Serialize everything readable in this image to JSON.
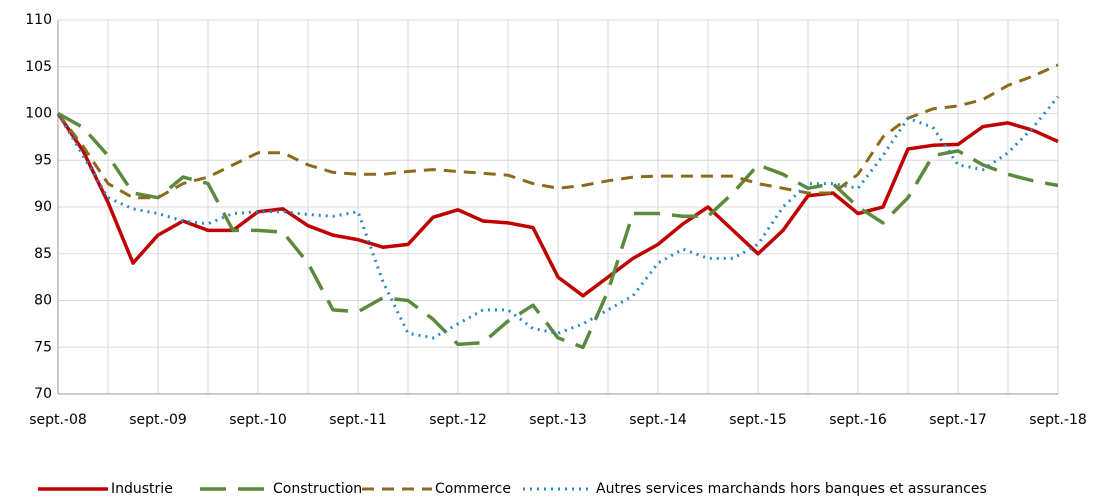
{
  "chart_data": {
    "type": "line",
    "categories": [
      "sept.-08",
      null,
      null,
      null,
      "sept.-09",
      null,
      null,
      null,
      "sept.-10",
      null,
      null,
      null,
      "sept.-11",
      null,
      null,
      null,
      "sept.-12",
      null,
      null,
      null,
      "sept.-13",
      null,
      null,
      null,
      "sept.-14",
      null,
      null,
      null,
      "sept.-15",
      null,
      null,
      null,
      "sept.-16",
      null,
      null,
      null,
      "sept.-17",
      null,
      null,
      null,
      "sept.-18"
    ],
    "series": [
      {
        "name": "Industrie",
        "color": "#c00000",
        "dash": "solid",
        "values": [
          100,
          96,
          90.5,
          84,
          87,
          88.5,
          87.5,
          87.5,
          89.5,
          89.8,
          88,
          87,
          86.5,
          85.7,
          86,
          88.9,
          89.7,
          88.5,
          88.3,
          87.8,
          82.5,
          80.5,
          82.5,
          84.5,
          86,
          88.2,
          90,
          87.5,
          85,
          87.5,
          91.2,
          91.5,
          89.3,
          90,
          96.2,
          96.6,
          96.7,
          98.6,
          99,
          98.2,
          97
        ]
      },
      {
        "name": "Construction",
        "color": "#5b8a3c",
        "dash": "long-dash",
        "values": [
          100,
          98.5,
          95.5,
          91.5,
          91,
          93.2,
          92.5,
          87.5,
          87.5,
          87.3,
          84,
          79,
          78.8,
          80.3,
          80,
          78,
          75.3,
          75.5,
          77.8,
          79.5,
          76,
          75,
          81,
          89.3,
          89.3,
          89,
          89,
          91.5,
          94.5,
          93.5,
          92,
          92.5,
          90,
          88.3,
          91,
          95.5,
          96,
          94.5,
          93.5,
          92.8,
          92.3
        ]
      },
      {
        "name": "Commerce",
        "color": "#8c6a1c",
        "dash": "dash",
        "values": [
          100,
          96.5,
          92.5,
          91,
          91,
          92.5,
          93.2,
          94.5,
          95.8,
          95.8,
          94.5,
          93.7,
          93.5,
          93.5,
          93.8,
          94,
          93.8,
          93.6,
          93.4,
          92.5,
          92,
          92.3,
          92.8,
          93.2,
          93.3,
          93.3,
          93.3,
          93.3,
          92.5,
          92,
          91.5,
          91.5,
          93.5,
          97.5,
          99.5,
          100.5,
          100.8,
          101.5,
          103,
          104,
          105.2
        ]
      },
      {
        "name": "Autres services marchands hors banques et assurances",
        "color": "#2a87c4",
        "dash": "dot",
        "values": [
          100,
          95.5,
          91,
          89.8,
          89.3,
          88.5,
          88.2,
          89.3,
          89.5,
          89.5,
          89.2,
          89,
          89.5,
          82,
          76.5,
          76,
          77.5,
          79,
          79,
          77,
          76.5,
          77.5,
          79,
          80.5,
          84,
          85.5,
          84.5,
          84.5,
          86,
          90,
          92.5,
          92.5,
          92,
          95.5,
          99.5,
          98.5,
          94.5,
          94,
          95.8,
          98.5,
          101.8
        ]
      }
    ],
    "ylim": [
      70,
      110
    ],
    "yticks": [
      70,
      75,
      80,
      85,
      90,
      95,
      100,
      105,
      110
    ],
    "grid": true,
    "legend": "bottom"
  }
}
